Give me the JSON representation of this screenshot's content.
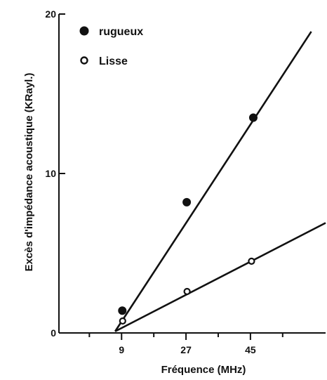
{
  "chart_data": {
    "type": "scatter",
    "title": "",
    "xlabel": "Fréquence (MHz)",
    "ylabel": "Excès d'impédance acoustique (KRayl.)",
    "xlim": [
      -8.5,
      66
    ],
    "ylim": [
      0,
      20
    ],
    "x_ticks": [
      9,
      27,
      45
    ],
    "y_ticks": [
      0,
      10,
      20
    ],
    "x_minor_ticks": [
      0,
      18,
      36,
      54
    ],
    "grid": false,
    "legend_position": "top-left",
    "colors": {
      "ink": "#111111",
      "background": "#ffffff"
    },
    "series": [
      {
        "name": "rugueux",
        "marker": "filled-circle",
        "points": [
          {
            "x": 9.2,
            "y": 1.4
          },
          {
            "x": 27.2,
            "y": 8.2
          },
          {
            "x": 45.8,
            "y": 13.5
          }
        ],
        "fit_line": [
          {
            "x": 7.2,
            "y": 0.1
          },
          {
            "x": 62.0,
            "y": 18.9
          }
        ]
      },
      {
        "name": "Lisse",
        "marker": "open-circle",
        "points": [
          {
            "x": 9.3,
            "y": 0.75
          },
          {
            "x": 27.3,
            "y": 2.6
          },
          {
            "x": 45.3,
            "y": 4.5
          }
        ],
        "fit_line": [
          {
            "x": 7.2,
            "y": 0.1
          },
          {
            "x": 66.0,
            "y": 6.9
          }
        ]
      }
    ]
  }
}
